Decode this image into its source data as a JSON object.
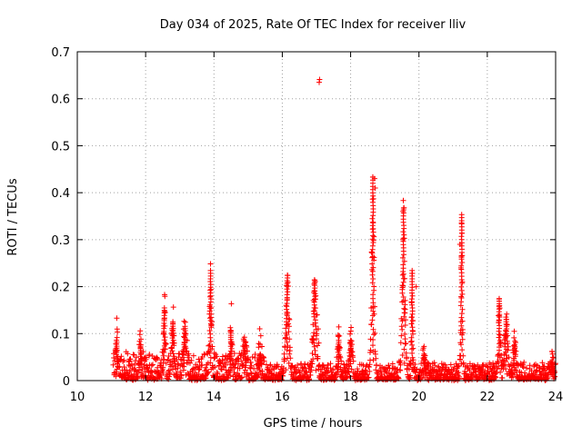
{
  "chart_data": {
    "type": "scatter",
    "title": "Day 034 of 2025, Rate Of TEC Index for receiver lliv",
    "xlabel": "GPS time / hours",
    "ylabel": "ROTI / TECUs",
    "xlim": [
      10,
      24
    ],
    "ylim": [
      0,
      0.7
    ],
    "xticks": [
      10,
      12,
      14,
      16,
      18,
      20,
      22,
      24
    ],
    "yticks": [
      0,
      0.1,
      0.2,
      0.3,
      0.4,
      0.5,
      0.6,
      0.7
    ],
    "xtick_labels": [
      "10",
      "12",
      "14",
      "16",
      "18",
      "20",
      "22",
      "24"
    ],
    "ytick_labels": [
      "0",
      "0.1",
      "0.2",
      "0.3",
      "0.4",
      "0.5",
      "0.6",
      "0.7"
    ],
    "grid": true,
    "marker": "+",
    "marker_color": "#ff0000",
    "series": [
      {
        "name": "ROTI",
        "baseline_range": [
          11.05,
          24.0
        ],
        "spikes": [
          {
            "t": 11.15,
            "peak": 0.09,
            "width": 0.05
          },
          {
            "t": 11.85,
            "peak": 0.08,
            "width": 0.05
          },
          {
            "t": 12.55,
            "peak": 0.16,
            "width": 0.04
          },
          {
            "t": 12.8,
            "peak": 0.13,
            "width": 0.05
          },
          {
            "t": 13.15,
            "peak": 0.12,
            "width": 0.06
          },
          {
            "t": 13.9,
            "peak": 0.24,
            "width": 0.04
          },
          {
            "t": 14.5,
            "peak": 0.11,
            "width": 0.04
          },
          {
            "t": 14.9,
            "peak": 0.08,
            "width": 0.05
          },
          {
            "t": 15.35,
            "peak": 0.06,
            "width": 0.05
          },
          {
            "t": 16.15,
            "peak": 0.23,
            "width": 0.07
          },
          {
            "t": 16.95,
            "peak": 0.22,
            "width": 0.07
          },
          {
            "t": 17.65,
            "peak": 0.09,
            "width": 0.05
          },
          {
            "t": 18.0,
            "peak": 0.09,
            "width": 0.06
          },
          {
            "t": 18.65,
            "peak": 0.44,
            "width": 0.05
          },
          {
            "t": 19.55,
            "peak": 0.37,
            "width": 0.06
          },
          {
            "t": 19.8,
            "peak": 0.24,
            "width": 0.03
          },
          {
            "t": 20.15,
            "peak": 0.06,
            "width": 0.05
          },
          {
            "t": 21.25,
            "peak": 0.36,
            "width": 0.03
          },
          {
            "t": 22.35,
            "peak": 0.18,
            "width": 0.04
          },
          {
            "t": 22.55,
            "peak": 0.14,
            "width": 0.06
          },
          {
            "t": 22.8,
            "peak": 0.08,
            "width": 0.05
          },
          {
            "t": 23.9,
            "peak": 0.04,
            "width": 0.05
          }
        ],
        "outliers": [
          {
            "x": 17.08,
            "y": 0.635
          },
          {
            "x": 17.09,
            "y": 0.641
          },
          {
            "x": 17.02,
            "y": 0.14
          },
          {
            "x": 17.05,
            "y": 0.11
          },
          {
            "x": 17.07,
            "y": 0.08
          },
          {
            "x": 19.92,
            "y": 0.2
          },
          {
            "x": 21.2,
            "y": 0.29
          },
          {
            "x": 21.23,
            "y": 0.24
          },
          {
            "x": 21.27,
            "y": 0.21
          },
          {
            "x": 18.7,
            "y": 0.43
          },
          {
            "x": 18.72,
            "y": 0.41
          }
        ]
      }
    ]
  }
}
